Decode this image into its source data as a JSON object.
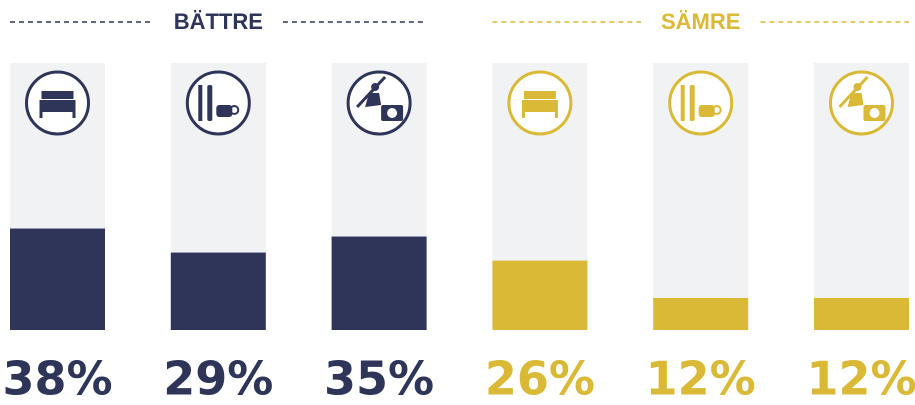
{
  "chart_data": {
    "type": "bar",
    "series": [
      {
        "name": "BÄTTRE",
        "color": "#2e3559",
        "values": [
          38,
          29,
          35
        ],
        "value_labels": [
          "38%",
          "29%",
          "35%"
        ]
      },
      {
        "name": "SÄMRE",
        "color": "#d9b935",
        "values": [
          26,
          12,
          12
        ],
        "value_labels": [
          "26%",
          "12%",
          "12%"
        ]
      }
    ],
    "ylim": [
      0,
      100
    ]
  }
}
